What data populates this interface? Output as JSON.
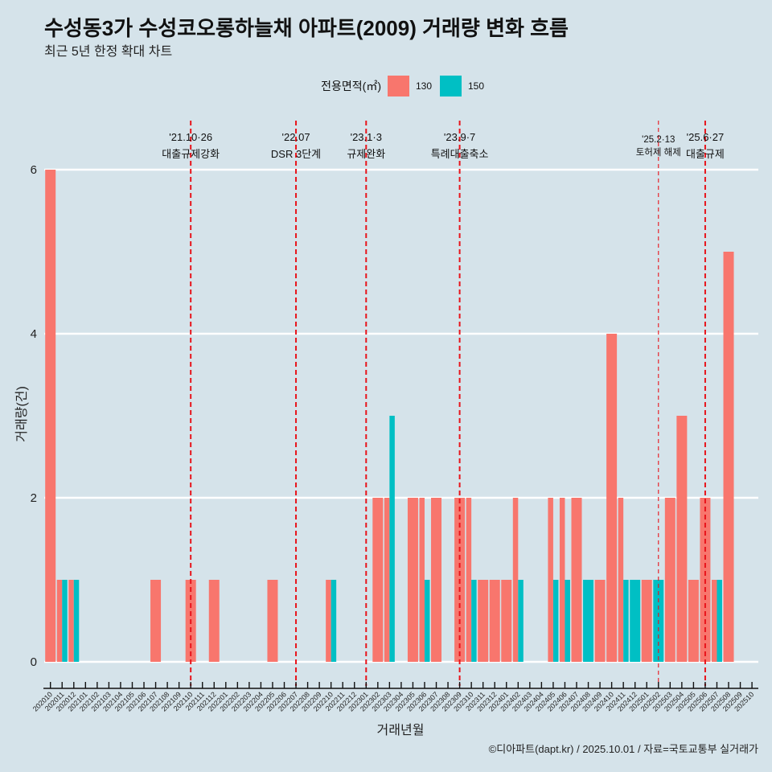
{
  "chart_data": {
    "type": "bar",
    "bar_position": "dodge",
    "title": "수성동3가 수성코오롱하늘채 아파트(2009) 거래량 변화 흐름",
    "subtitle": "최근 5년 한정 확대 차트",
    "xlabel": "거래년월",
    "ylabel": "거래량(건)",
    "y_ticks": [
      0,
      2,
      4,
      6
    ],
    "ylim": [
      0,
      6
    ],
    "grid": true,
    "legend": {
      "title": "전용면적(㎡)",
      "position": "top"
    },
    "categories": [
      "202010",
      "202011",
      "202012",
      "202101",
      "202102",
      "202103",
      "202104",
      "202105",
      "202106",
      "202107",
      "202108",
      "202109",
      "202110",
      "202111",
      "202112",
      "202201",
      "202202",
      "202203",
      "202204",
      "202205",
      "202206",
      "202207",
      "202208",
      "202209",
      "202210",
      "202211",
      "202212",
      "202301",
      "202302",
      "202303",
      "202304",
      "202305",
      "202306",
      "202307",
      "202308",
      "202309",
      "202310",
      "202311",
      "202312",
      "202401",
      "202402",
      "202403",
      "202404",
      "202405",
      "202406",
      "202407",
      "202408",
      "202409",
      "202410",
      "202411",
      "202412",
      "202501",
      "202502",
      "202503",
      "202504",
      "202505",
      "202506",
      "202507",
      "202508",
      "202509",
      "202510"
    ],
    "series": [
      {
        "name": "130",
        "color": "#F8766D",
        "values": [
          6,
          1,
          1,
          0,
          0,
          0,
          0,
          0,
          0,
          1,
          0,
          0,
          1,
          0,
          1,
          0,
          0,
          0,
          0,
          1,
          0,
          0,
          0,
          0,
          1,
          0,
          0,
          0,
          2,
          2,
          0,
          2,
          2,
          2,
          0,
          2,
          2,
          1,
          1,
          1,
          2,
          0,
          0,
          2,
          2,
          2,
          0,
          1,
          4,
          2,
          0,
          1,
          0,
          2,
          3,
          1,
          2,
          1,
          5,
          0,
          0
        ]
      },
      {
        "name": "150",
        "color": "#00BFC4",
        "values": [
          0,
          1,
          1,
          0,
          0,
          0,
          0,
          0,
          0,
          0,
          0,
          0,
          0,
          0,
          0,
          0,
          0,
          0,
          0,
          0,
          0,
          0,
          0,
          0,
          1,
          0,
          0,
          0,
          0,
          3,
          0,
          0,
          1,
          0,
          0,
          0,
          1,
          0,
          0,
          0,
          1,
          0,
          0,
          1,
          1,
          0,
          1,
          0,
          0,
          1,
          1,
          0,
          1,
          0,
          0,
          0,
          0,
          1,
          0,
          0,
          0
        ]
      }
    ],
    "annotations": [
      {
        "x": "202110",
        "date": "'21.10·26",
        "label": "대출규제강화",
        "emphasis": "strong"
      },
      {
        "x": "202207",
        "date": "'22.07",
        "label": "DSR 3단계",
        "emphasis": "strong"
      },
      {
        "x": "202301",
        "date": "'23.1·3",
        "label": "규제완화",
        "emphasis": "strong"
      },
      {
        "x": "202309",
        "date": "'23.9·7",
        "label": "특례대출축소",
        "emphasis": "strong"
      },
      {
        "x": "202502",
        "date": "'25.2·13",
        "label": "토허제 해제",
        "emphasis": "light"
      },
      {
        "x": "202506",
        "date": "'25.6·27",
        "label": "대출규제",
        "emphasis": "strong"
      }
    ],
    "annotation_line_color": "#e8141b",
    "caption": "©디아파트(dapt.kr) / 2025.10.01 / 자료=국토교통부 실거래가"
  }
}
